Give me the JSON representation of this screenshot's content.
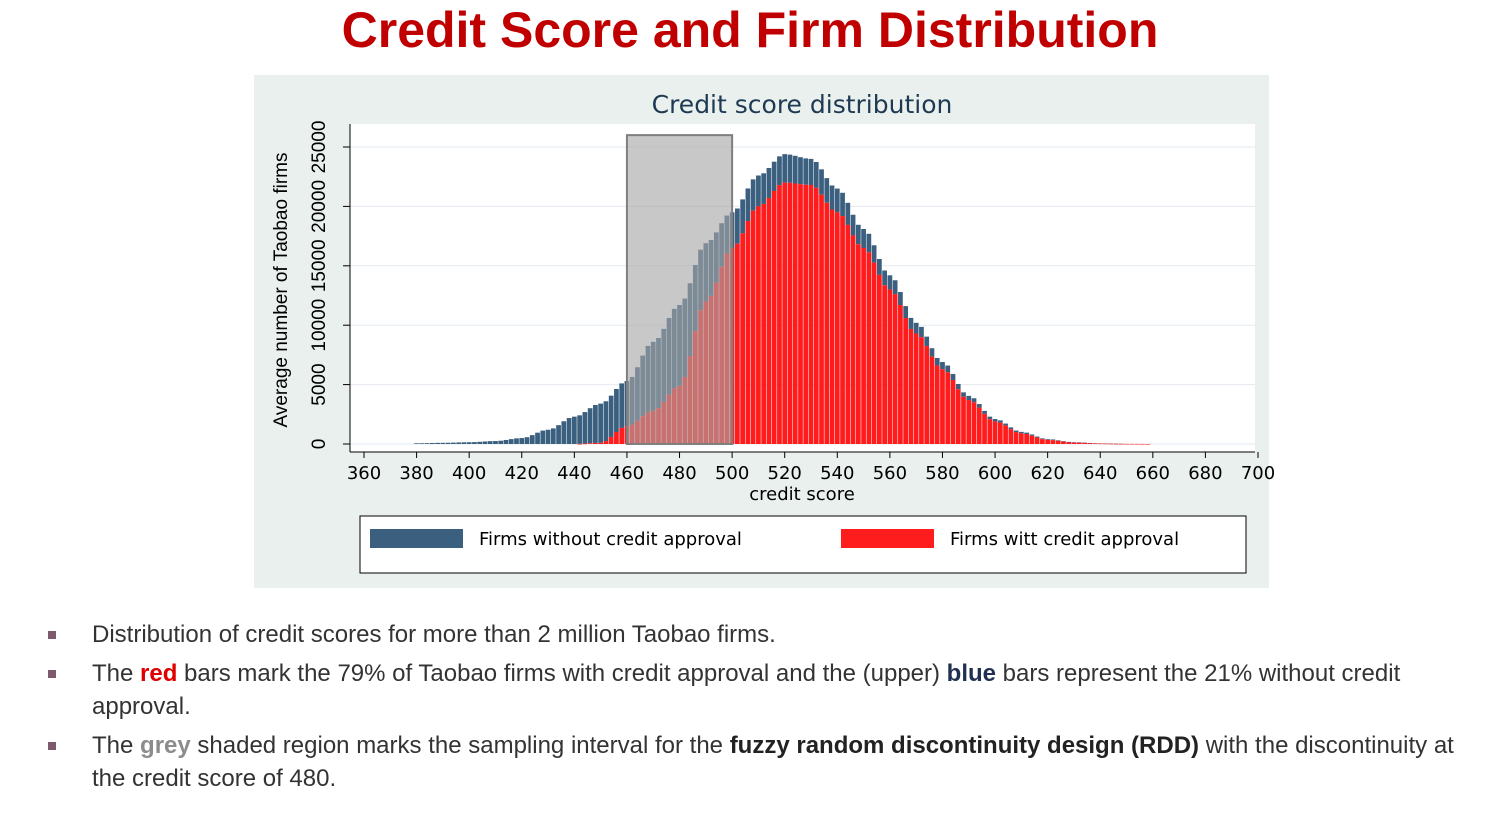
{
  "slide": {
    "title": "Credit Score and Firm Distribution"
  },
  "colors": {
    "title": "#c00000",
    "chart_background": "#e9f0ee",
    "plot_background": "#ffffff",
    "without_approval": "#3b5f7f",
    "with_approval": "#ff1c1c",
    "shaded_region": "#a6a6a6"
  },
  "chart_data": {
    "type": "bar",
    "title": "Credit score distribution",
    "xlabel": "credit score",
    "ylabel": "Average number of Taobao firms",
    "xlim": [
      360,
      700
    ],
    "ylim": [
      0,
      25000
    ],
    "xticks": [
      "360",
      "380",
      "400",
      "420",
      "440",
      "460",
      "480",
      "500",
      "520",
      "540",
      "560",
      "580",
      "600",
      "620",
      "640",
      "660",
      "680",
      "700"
    ],
    "yticks": [
      "0",
      "5000",
      "10000",
      "15000",
      "20000",
      "25000"
    ],
    "grid": true,
    "stacked": true,
    "shaded_region": {
      "x_from": 460,
      "x_to": 500,
      "y_top": 26000
    },
    "legend": {
      "position": "bottom",
      "items": [
        {
          "label": "Firms without credit approval",
          "color": "#3b5f7f"
        },
        {
          "label": "Firms witt credit approval",
          "color": "#ff1c1c"
        }
      ]
    },
    "series": [
      {
        "name": "Firms without credit approval",
        "x": [
          380,
          390,
          400,
          410,
          420,
          430,
          440,
          450,
          460,
          470,
          480,
          490,
          500,
          510,
          520,
          530,
          540,
          550,
          560,
          570,
          580,
          590,
          600,
          610,
          620,
          630,
          640,
          650,
          660,
          670,
          680,
          690
        ],
        "values": [
          60,
          100,
          150,
          250,
          500,
          1200,
          2300,
          3300,
          3800,
          5800,
          6800,
          4900,
          3000,
          2600,
          2400,
          2200,
          2000,
          1600,
          1200,
          900,
          600,
          350,
          200,
          120,
          60,
          30,
          10,
          0,
          0,
          0,
          0,
          0
        ]
      },
      {
        "name": "Firms witt credit approval",
        "x": [
          380,
          390,
          400,
          410,
          420,
          430,
          440,
          450,
          460,
          470,
          480,
          490,
          500,
          510,
          520,
          530,
          540,
          550,
          560,
          570,
          580,
          590,
          600,
          610,
          620,
          630,
          640,
          650,
          660,
          670,
          680,
          690
        ],
        "values": [
          0,
          0,
          0,
          0,
          0,
          0,
          0,
          100,
          1500,
          2800,
          4900,
          12000,
          16500,
          20000,
          22000,
          21800,
          19500,
          16500,
          13000,
          9300,
          6300,
          3700,
          1900,
          900,
          350,
          120,
          40,
          10,
          0,
          0,
          0,
          0
        ]
      }
    ]
  },
  "bullets": [
    {
      "parts": [
        {
          "text": "Distribution of credit scores for more than 2 million Taobao firms.",
          "style": ""
        }
      ]
    },
    {
      "parts": [
        {
          "text": "The ",
          "style": ""
        },
        {
          "text": "red",
          "style": "kw-red"
        },
        {
          "text": " bars mark the 79% of Taobao firms with credit approval and the (upper) ",
          "style": ""
        },
        {
          "text": "blue",
          "style": "kw-blue"
        },
        {
          "text": " bars represent the 21% without credit approval.",
          "style": ""
        }
      ]
    },
    {
      "parts": [
        {
          "text": "The ",
          "style": ""
        },
        {
          "text": "grey",
          "style": "kw-grey"
        },
        {
          "text": " shaded region marks the sampling interval for the ",
          "style": ""
        },
        {
          "text": "fuzzy random discontinuity design (RDD)",
          "style": "kw-bold"
        },
        {
          "text": " with the discontinuity at the credit score of 480.",
          "style": ""
        }
      ]
    }
  ]
}
